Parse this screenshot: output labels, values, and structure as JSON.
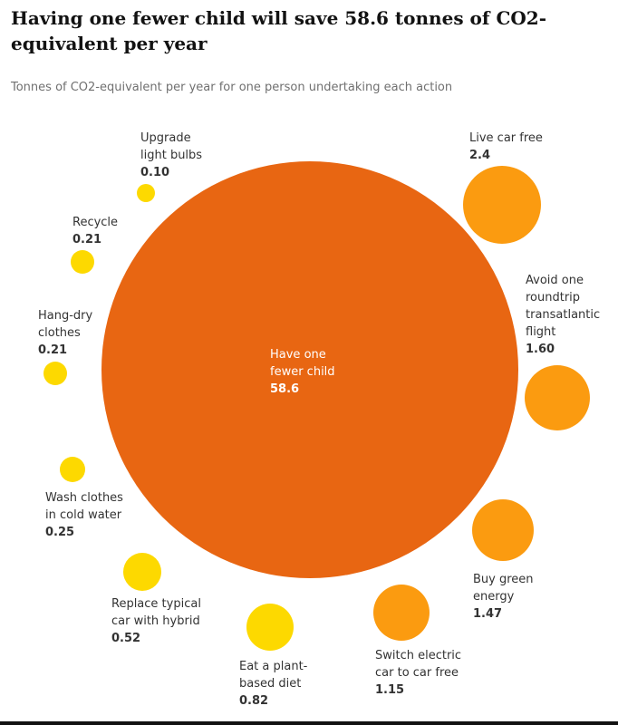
{
  "title": "Having one fewer child will save 58.6 tonnes of CO2-equivalent per year",
  "subtitle": "Tonnes of CO2-equivalent per year for one person undertaking each action",
  "colors": {
    "large": "#e86612",
    "medium": "#fb9b10",
    "small": "#fdd900",
    "center_text": "#ffffff",
    "label_text": "#333333"
  },
  "chart_data": {
    "type": "bubble",
    "title": "Having one fewer child will save 58.6 tonnes of CO2-equivalent per year",
    "subtitle": "Tonnes of CO2-equivalent per year for one person undertaking each action",
    "series": [
      {
        "label": [
          "Have one",
          "fewer child"
        ],
        "value": "58.6",
        "color_group": "large"
      },
      {
        "label": [
          "Live car free"
        ],
        "value": "2.4",
        "color_group": "medium"
      },
      {
        "label": [
          "Avoid one",
          "roundtrip",
          "transatlantic",
          "flight"
        ],
        "value": "1.60",
        "color_group": "medium"
      },
      {
        "label": [
          "Buy green",
          "energy"
        ],
        "value": "1.47",
        "color_group": "medium"
      },
      {
        "label": [
          "Switch electric",
          "car to car free"
        ],
        "value": "1.15",
        "color_group": "medium"
      },
      {
        "label": [
          "Eat a plant-",
          "based diet"
        ],
        "value": "0.82",
        "color_group": "small"
      },
      {
        "label": [
          "Replace typical",
          "car with hybrid"
        ],
        "value": "0.52",
        "color_group": "small"
      },
      {
        "label": [
          "Wash clothes",
          "in cold water"
        ],
        "value": "0.25",
        "color_group": "small"
      },
      {
        "label": [
          "Hang-dry",
          "clothes"
        ],
        "value": "0.21",
        "color_group": "small"
      },
      {
        "label": [
          "Recycle"
        ],
        "value": "0.21",
        "color_group": "small"
      },
      {
        "label": [
          "Upgrade",
          "light bulbs"
        ],
        "value": "0.10",
        "color_group": "small"
      }
    ]
  }
}
